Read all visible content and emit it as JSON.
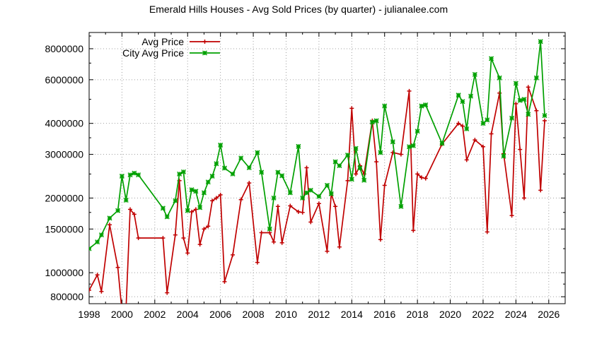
{
  "chart_data": {
    "type": "line",
    "title": "Emerald Hills Houses - Avg Sold Prices (by quarter) - julianalee.com",
    "xlabel": "",
    "ylabel": "",
    "y_scale": "log",
    "xlim": [
      1998,
      2027
    ],
    "ylim": [
      750000,
      9300000
    ],
    "x_ticks": [
      "1998",
      "2000",
      "2002",
      "2004",
      "2006",
      "2008",
      "2010",
      "2012",
      "2014",
      "2016",
      "2018",
      "2020",
      "2022",
      "2024",
      "2026"
    ],
    "x_tick_values": [
      1998,
      2000,
      2002,
      2004,
      2006,
      2008,
      2010,
      2012,
      2014,
      2016,
      2018,
      2020,
      2022,
      2024,
      2026
    ],
    "y_ticks": [
      "800000",
      "1000000",
      "1500000",
      "2000000",
      "3000000",
      "4000000",
      "6000000",
      "8000000"
    ],
    "y_tick_values": [
      800000,
      1000000,
      1500000,
      2000000,
      3000000,
      4000000,
      6000000,
      8000000
    ],
    "grid": true,
    "legend_position": "top-left",
    "series": [
      {
        "name": "Avg Price",
        "color": "#c00000",
        "marker": "plus",
        "points": [
          [
            1998.0,
            850000
          ],
          [
            1998.5,
            980000
          ],
          [
            1998.75,
            840000
          ],
          [
            1999.25,
            1560000
          ],
          [
            1999.75,
            1050000
          ],
          [
            2000.0,
            700000
          ],
          [
            2000.25,
            720000
          ],
          [
            2000.5,
            1800000
          ],
          [
            2000.75,
            1720000
          ],
          [
            2001.0,
            1380000
          ],
          [
            2002.5,
            1380000
          ],
          [
            2002.75,
            830000
          ],
          [
            2003.25,
            1420000
          ],
          [
            2003.5,
            2350000
          ],
          [
            2003.75,
            1380000
          ],
          [
            2004.0,
            1200000
          ],
          [
            2004.25,
            1760000
          ],
          [
            2004.5,
            1800000
          ],
          [
            2004.75,
            1300000
          ],
          [
            2005.0,
            1500000
          ],
          [
            2005.25,
            1540000
          ],
          [
            2005.5,
            1950000
          ],
          [
            2005.75,
            2000000
          ],
          [
            2006.0,
            2060000
          ],
          [
            2006.25,
            920000
          ],
          [
            2006.75,
            1180000
          ],
          [
            2007.25,
            1970000
          ],
          [
            2007.75,
            2300000
          ],
          [
            2008.25,
            1100000
          ],
          [
            2008.5,
            1450000
          ],
          [
            2009.0,
            1450000
          ],
          [
            2009.25,
            1330000
          ],
          [
            2009.5,
            1850000
          ],
          [
            2009.75,
            1320000
          ],
          [
            2010.25,
            1860000
          ],
          [
            2010.75,
            1760000
          ],
          [
            2011.0,
            1750000
          ],
          [
            2011.25,
            2650000
          ],
          [
            2011.5,
            1600000
          ],
          [
            2012.0,
            1900000
          ],
          [
            2012.5,
            1220000
          ],
          [
            2012.75,
            2080000
          ],
          [
            2013.0,
            1850000
          ],
          [
            2013.25,
            1270000
          ],
          [
            2013.75,
            2350000
          ],
          [
            2014.0,
            4600000
          ],
          [
            2014.25,
            2500000
          ],
          [
            2014.5,
            2700000
          ],
          [
            2014.75,
            2500000
          ],
          [
            2015.25,
            4100000
          ],
          [
            2015.5,
            2800000
          ],
          [
            2015.75,
            1360000
          ],
          [
            2016.0,
            2250000
          ],
          [
            2016.5,
            3050000
          ],
          [
            2017.0,
            3000000
          ],
          [
            2017.5,
            5400000
          ],
          [
            2017.75,
            1480000
          ],
          [
            2018.0,
            2500000
          ],
          [
            2018.25,
            2420000
          ],
          [
            2018.5,
            2400000
          ],
          [
            2019.5,
            3300000
          ],
          [
            2020.5,
            4000000
          ],
          [
            2020.75,
            3900000
          ],
          [
            2021.0,
            2850000
          ],
          [
            2021.5,
            3430000
          ],
          [
            2022.0,
            3220000
          ],
          [
            2022.25,
            1460000
          ],
          [
            2022.5,
            3630000
          ],
          [
            2023.0,
            5300000
          ],
          [
            2023.25,
            3020000
          ],
          [
            2023.75,
            1700000
          ],
          [
            2024.0,
            4800000
          ],
          [
            2024.25,
            3140000
          ],
          [
            2024.5,
            2000000
          ],
          [
            2024.75,
            5600000
          ],
          [
            2025.25,
            4500000
          ],
          [
            2025.5,
            2150000
          ],
          [
            2025.75,
            4100000
          ]
        ]
      },
      {
        "name": "City Avg Price",
        "color": "#00a000",
        "marker": "star",
        "points": [
          [
            1998.0,
            1250000
          ],
          [
            1998.5,
            1330000
          ],
          [
            1998.75,
            1420000
          ],
          [
            1999.25,
            1660000
          ],
          [
            1999.75,
            1780000
          ],
          [
            2000.0,
            2450000
          ],
          [
            2000.25,
            1960000
          ],
          [
            2000.5,
            2480000
          ],
          [
            2000.75,
            2520000
          ],
          [
            2001.0,
            2480000
          ],
          [
            2002.5,
            1820000
          ],
          [
            2002.75,
            1680000
          ],
          [
            2003.25,
            1950000
          ],
          [
            2003.5,
            2500000
          ],
          [
            2003.75,
            2550000
          ],
          [
            2004.0,
            1780000
          ],
          [
            2004.25,
            2160000
          ],
          [
            2004.5,
            2130000
          ],
          [
            2004.75,
            1830000
          ],
          [
            2005.0,
            2100000
          ],
          [
            2005.25,
            2320000
          ],
          [
            2005.5,
            2450000
          ],
          [
            2005.75,
            2750000
          ],
          [
            2006.0,
            3270000
          ],
          [
            2006.25,
            2640000
          ],
          [
            2006.75,
            2500000
          ],
          [
            2007.25,
            2900000
          ],
          [
            2007.75,
            2650000
          ],
          [
            2008.25,
            3050000
          ],
          [
            2008.5,
            2540000
          ],
          [
            2009.0,
            1500000
          ],
          [
            2009.25,
            2000000
          ],
          [
            2009.5,
            2540000
          ],
          [
            2009.75,
            2460000
          ],
          [
            2010.25,
            2100000
          ],
          [
            2010.75,
            3230000
          ],
          [
            2011.0,
            2000000
          ],
          [
            2011.25,
            2100000
          ],
          [
            2011.5,
            2150000
          ],
          [
            2012.0,
            2030000
          ],
          [
            2012.5,
            2250000
          ],
          [
            2012.75,
            2080000
          ],
          [
            2013.0,
            2800000
          ],
          [
            2013.25,
            2700000
          ],
          [
            2013.75,
            2980000
          ],
          [
            2014.0,
            2380000
          ],
          [
            2014.25,
            3170000
          ],
          [
            2014.5,
            2640000
          ],
          [
            2014.75,
            2360000
          ],
          [
            2015.25,
            4050000
          ],
          [
            2015.5,
            4100000
          ],
          [
            2015.75,
            3050000
          ],
          [
            2016.0,
            4700000
          ],
          [
            2016.5,
            3370000
          ],
          [
            2017.0,
            1850000
          ],
          [
            2017.5,
            3220000
          ],
          [
            2017.75,
            3250000
          ],
          [
            2018.0,
            3720000
          ],
          [
            2018.25,
            4700000
          ],
          [
            2018.5,
            4750000
          ],
          [
            2019.5,
            3320000
          ],
          [
            2020.5,
            5200000
          ],
          [
            2020.75,
            4900000
          ],
          [
            2021.0,
            3800000
          ],
          [
            2021.25,
            5150000
          ],
          [
            2021.5,
            6300000
          ],
          [
            2022.0,
            4000000
          ],
          [
            2022.25,
            4130000
          ],
          [
            2022.5,
            7300000
          ],
          [
            2023.0,
            6100000
          ],
          [
            2023.25,
            2950000
          ],
          [
            2023.75,
            4200000
          ],
          [
            2024.0,
            5800000
          ],
          [
            2024.25,
            4950000
          ],
          [
            2024.5,
            5000000
          ],
          [
            2024.75,
            4350000
          ],
          [
            2025.25,
            6100000
          ],
          [
            2025.5,
            8550000
          ],
          [
            2025.75,
            4300000
          ]
        ]
      }
    ]
  }
}
